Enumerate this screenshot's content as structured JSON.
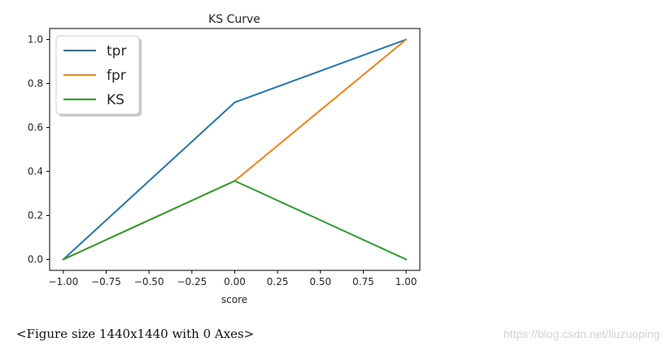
{
  "chart_data": {
    "type": "line",
    "title": "KS Curve",
    "xlabel": "score",
    "ylabel": "",
    "xlim": [
      -1.08,
      1.08
    ],
    "ylim": [
      -0.05,
      1.05
    ],
    "xticks": [
      -1.0,
      -0.75,
      -0.5,
      -0.25,
      0.0,
      0.25,
      0.5,
      0.75,
      1.0
    ],
    "xtick_labels": [
      "−1.00",
      "−0.75",
      "−0.50",
      "−0.25",
      "0.00",
      "0.25",
      "0.50",
      "0.75",
      "1.00"
    ],
    "yticks": [
      0.0,
      0.2,
      0.4,
      0.6,
      0.8,
      1.0
    ],
    "ytick_labels": [
      "0.0",
      "0.2",
      "0.4",
      "0.6",
      "0.8",
      "1.0"
    ],
    "grid": false,
    "legend_position": "top-left",
    "series": [
      {
        "name": "tpr",
        "color": "#1f77b4",
        "x": [
          -1.0,
          0.0,
          1.0
        ],
        "y": [
          0.0,
          0.714,
          1.0
        ]
      },
      {
        "name": "fpr",
        "color": "#ff7f0e",
        "x": [
          -1.0,
          0.0,
          1.0
        ],
        "y": [
          0.0,
          0.357,
          1.0
        ]
      },
      {
        "name": "KS",
        "color": "#2ca02c",
        "x": [
          -1.0,
          0.0,
          1.0
        ],
        "y": [
          0.0,
          0.357,
          0.0
        ]
      }
    ]
  },
  "figure_caption": "<Figure size 1440x1440 with 0 Axes>",
  "watermark": "https://blog.csdn.net/liuzuoping"
}
